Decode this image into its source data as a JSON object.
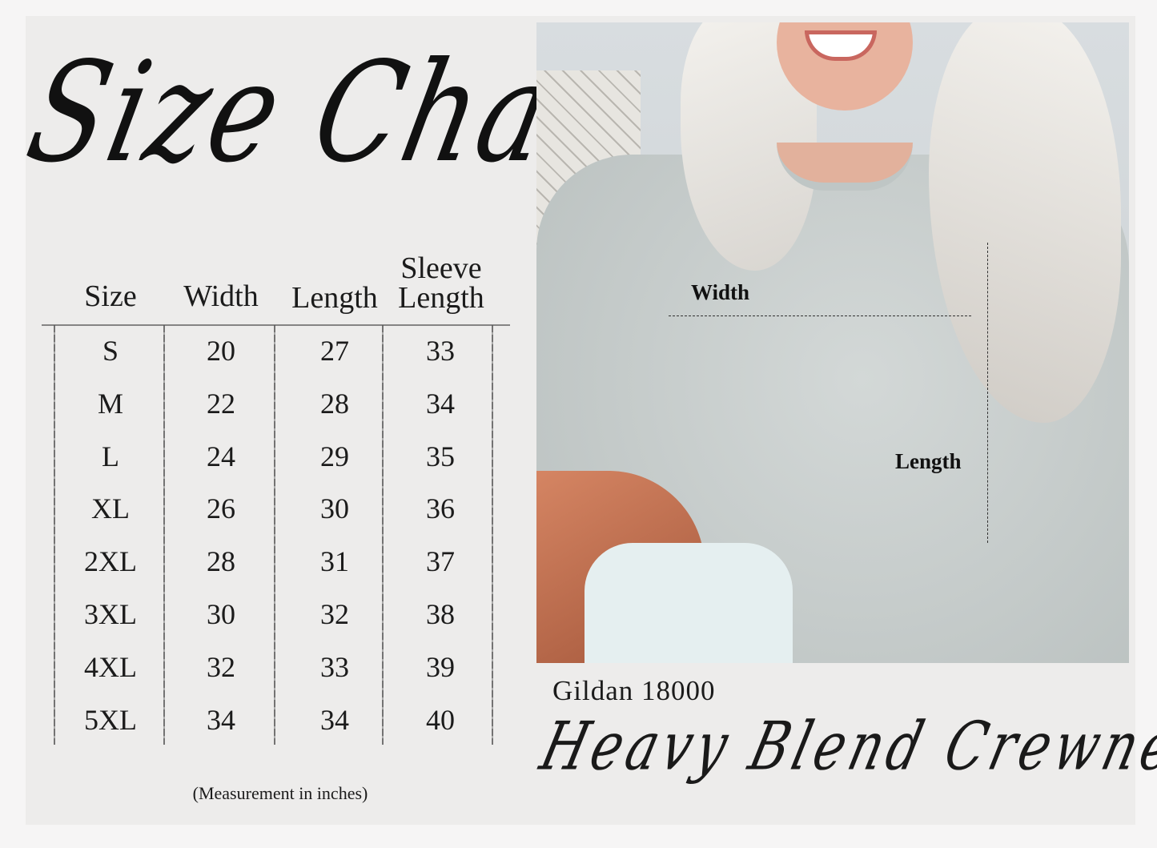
{
  "title": "Size Chart",
  "table": {
    "headers": {
      "size": "Size",
      "width": "Width",
      "length": "Length",
      "sleeve_top": "Sleeve",
      "sleeve_bottom": "Length"
    },
    "rows": [
      {
        "size": "S",
        "width": "20",
        "length": "27",
        "sleeve": "33"
      },
      {
        "size": "M",
        "width": "22",
        "length": "28",
        "sleeve": "34"
      },
      {
        "size": "L",
        "width": "24",
        "length": "29",
        "sleeve": "35"
      },
      {
        "size": "XL",
        "width": "26",
        "length": "30",
        "sleeve": "36"
      },
      {
        "size": "2XL",
        "width": "28",
        "length": "31",
        "sleeve": "37"
      },
      {
        "size": "3XL",
        "width": "30",
        "length": "32",
        "sleeve": "38"
      },
      {
        "size": "4XL",
        "width": "32",
        "length": "33",
        "sleeve": "39"
      },
      {
        "size": "5XL",
        "width": "34",
        "length": "34",
        "sleeve": "40"
      }
    ],
    "note": "(Measurement in inches)"
  },
  "photo": {
    "width_label": "Width",
    "length_label": "Length"
  },
  "product": {
    "model": "Gildan 18000",
    "name": "Heavy Blend Crewneck"
  }
}
